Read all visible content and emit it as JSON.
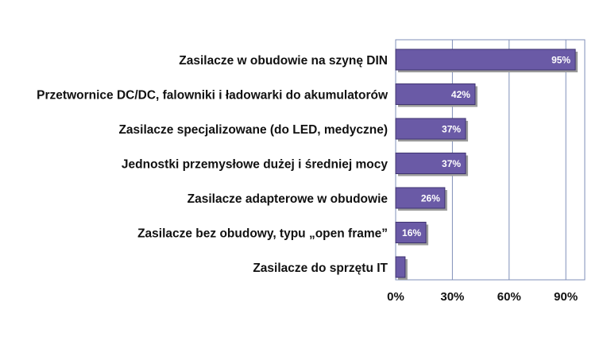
{
  "chart_data": {
    "type": "bar",
    "orientation": "horizontal",
    "title": "",
    "xlabel": "",
    "ylabel": "",
    "categories": [
      "Zasilacze w obudowie na szynę DIN",
      "Przetwornice DC/DC, falowniki i ładowarki do akumulatorów",
      "Zasilacze specjalizowane (do LED, medyczne)",
      "Jednostki przemysłowe dużej i średniej mocy",
      "Zasilacze adapterowe w obudowie",
      "Zasilacze bez obudowy, typu „open frame”",
      "Zasilacze do sprzętu IT"
    ],
    "values": [
      95,
      42,
      37,
      37,
      26,
      16,
      5
    ],
    "value_labels": [
      "95%",
      "42%",
      "37%",
      "37%",
      "26%",
      "16%",
      ""
    ],
    "xlim": [
      0,
      100
    ],
    "xticks": [
      0,
      30,
      60,
      90
    ],
    "xtick_labels": [
      "0%",
      "30%",
      "60%",
      "90%"
    ],
    "grid": true,
    "legend": "none",
    "colors": {
      "bar_fill": "#6a5aa6",
      "bar_shadow": "#9b9b9b",
      "bar_edge": "#3f3470",
      "gridline": "#7f8fb8",
      "plot_border": "#7f8fb8"
    }
  }
}
